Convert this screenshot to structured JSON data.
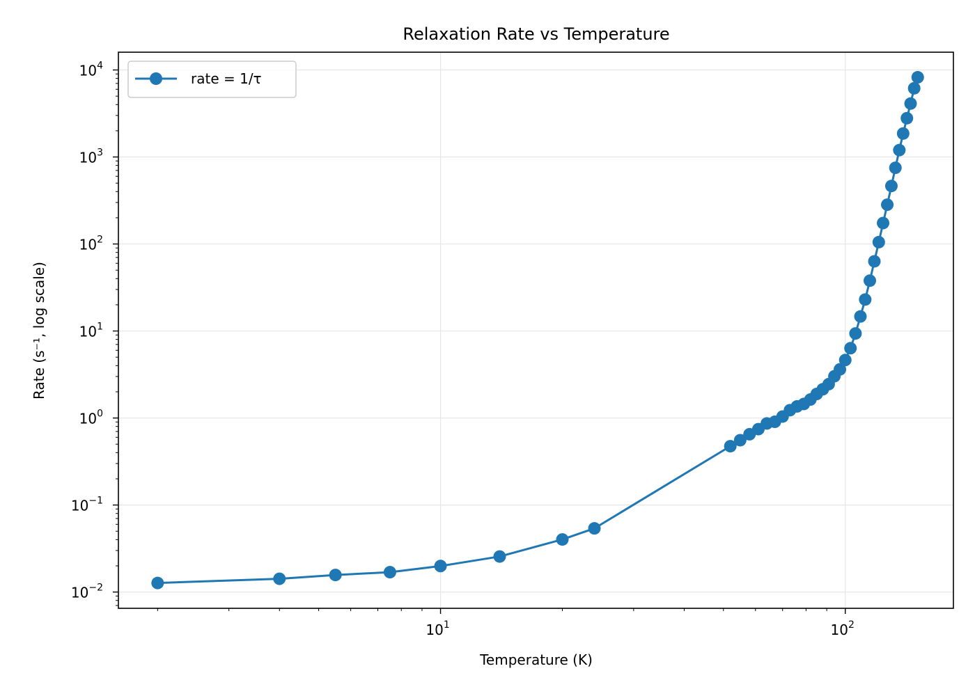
{
  "chart_data": {
    "type": "line",
    "title": "Relaxation Rate vs Temperature",
    "xlabel": "Temperature (K)",
    "ylabel": "Rate (s⁻¹, log scale)",
    "x_scale": "log",
    "y_scale": "log",
    "xlim": [
      1.6,
      185
    ],
    "ylim": [
      0.0065,
      16000
    ],
    "x_ticks": [
      {
        "base": "10",
        "exp": "1",
        "value": 10
      },
      {
        "base": "10",
        "exp": "2",
        "value": 100
      }
    ],
    "y_ticks": [
      {
        "base": "10",
        "exp": "−2",
        "value": 0.01
      },
      {
        "base": "10",
        "exp": "−1",
        "value": 0.1
      },
      {
        "base": "10",
        "exp": "0",
        "value": 1
      },
      {
        "base": "10",
        "exp": "1",
        "value": 10
      },
      {
        "base": "10",
        "exp": "2",
        "value": 100
      },
      {
        "base": "10",
        "exp": "3",
        "value": 1000
      },
      {
        "base": "10",
        "exp": "4",
        "value": 10000
      }
    ],
    "grid": true,
    "legend": {
      "position": "top-left"
    },
    "series": [
      {
        "name": "rate = 1/τ",
        "color": "#1f77b4",
        "marker": "circle",
        "x": [
          2.0,
          4.0,
          5.5,
          7.5,
          10.0,
          14.0,
          20.0,
          24.0,
          52.0,
          55.0,
          58.0,
          61.0,
          64.0,
          67.0,
          70.0,
          73.0,
          76.0,
          79.0,
          82.0,
          85.0,
          88.0,
          91.0,
          94.0,
          97.0,
          100.0,
          103.0,
          106.0,
          109.0,
          112.0,
          115.0,
          118.0,
          121.0,
          124.0,
          127.0,
          130.0,
          133.0,
          136.0,
          139.0,
          142.0,
          145.0,
          148.0,
          151.0
        ],
        "y": [
          0.0127,
          0.0142,
          0.0157,
          0.0169,
          0.0199,
          0.0256,
          0.0402,
          0.0539,
          0.474,
          0.556,
          0.651,
          0.745,
          0.866,
          0.905,
          1.04,
          1.23,
          1.36,
          1.45,
          1.63,
          1.89,
          2.14,
          2.45,
          3.02,
          3.62,
          4.64,
          6.34,
          9.37,
          14.7,
          23.0,
          37.9,
          63.2,
          105,
          174,
          283,
          464,
          751,
          1200,
          1860,
          2790,
          4110,
          6160,
          8240
        ]
      }
    ]
  }
}
